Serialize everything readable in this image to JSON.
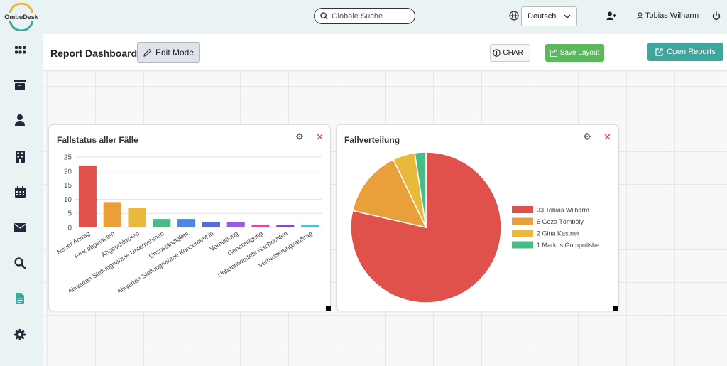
{
  "topbar": {
    "brand": "OmbuDesk",
    "search_placeholder": "Globale Suche",
    "language": "Deutsch",
    "user_name": "Tobias Wilharm"
  },
  "sidebar": {
    "items": [
      {
        "icon": "grid-icon"
      },
      {
        "icon": "archive-icon"
      },
      {
        "icon": "person-icon"
      },
      {
        "icon": "building-icon"
      },
      {
        "icon": "calendar-icon"
      },
      {
        "icon": "envelope-icon"
      },
      {
        "icon": "search-icon"
      },
      {
        "icon": "document-icon",
        "active": true
      },
      {
        "icon": "gear-icon"
      }
    ]
  },
  "header": {
    "title": "Report Dashboard",
    "edit_mode_label": "Edit Mode",
    "chart_label": "CHART",
    "save_label": "Save Layout",
    "open_reports_label": "Open Reports"
  },
  "colors": {
    "accent_teal": "#3fa69c",
    "save_green": "#5cb85c",
    "close_red": "#e0413a"
  },
  "chart_data": [
    {
      "type": "bar",
      "title": "Fallstatus aller Fälle",
      "categories": [
        "Neuer Antrag",
        "Frist abgelaufen",
        "Abgeschlossen",
        "Abwarten Stellungnahme Unternehmen",
        "Unzuständigkeit",
        "Abwarten Stellungnahme Konsument:in",
        "Vermittlung",
        "Genehmigung",
        "Unbeantwortete Nachrichten",
        "Verbesserungsauftrag"
      ],
      "values": [
        22,
        9,
        7,
        3,
        3,
        2,
        2,
        1,
        1,
        1
      ],
      "colors": [
        "#e0514c",
        "#e9a03b",
        "#e8b93b",
        "#4cba86",
        "#4c86e0",
        "#5a6ad8",
        "#9a5ae0",
        "#e04c8a",
        "#7a4ccf",
        "#4cc1d3"
      ],
      "ylim": [
        0,
        25
      ],
      "yticks": [
        0,
        5,
        10,
        15,
        20,
        25
      ],
      "grid": true
    },
    {
      "type": "pie",
      "title": "Fallverteilung",
      "labels": [
        "33 Tobias Wilharm",
        "6 Geza Tömböly",
        "2 Gina Kastner",
        "1 Markus Gumpoltsbe..."
      ],
      "values": [
        33,
        6,
        2,
        1
      ],
      "colors": [
        "#e0514c",
        "#e9a03b",
        "#e8b93b",
        "#4cba86"
      ],
      "legend": "right"
    }
  ]
}
